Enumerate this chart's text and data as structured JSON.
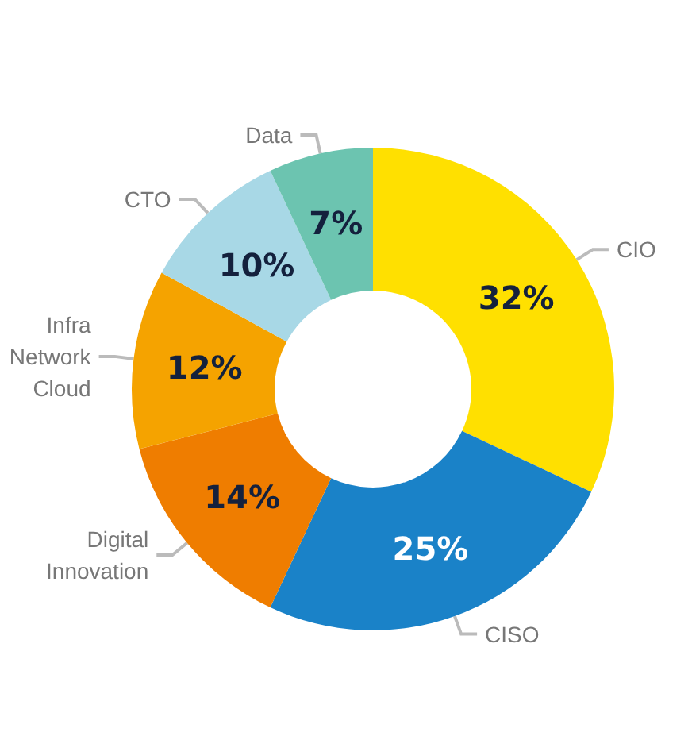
{
  "chart_data": {
    "type": "donut",
    "categories": [
      "CIO",
      "CISO",
      "Digital\nInnovation",
      "Infra\nNetwork\nCloud",
      "CTO",
      "Data"
    ],
    "values": [
      32,
      25,
      14,
      12,
      10,
      7
    ],
    "value_labels": [
      "32%",
      "25%",
      "14%",
      "12%",
      "10%",
      "7%"
    ],
    "colors": [
      "#ffe000",
      "#1a82c8",
      "#ef7d00",
      "#f5a300",
      "#a8d8e6",
      "#6cc4b0"
    ],
    "legend": false
  }
}
